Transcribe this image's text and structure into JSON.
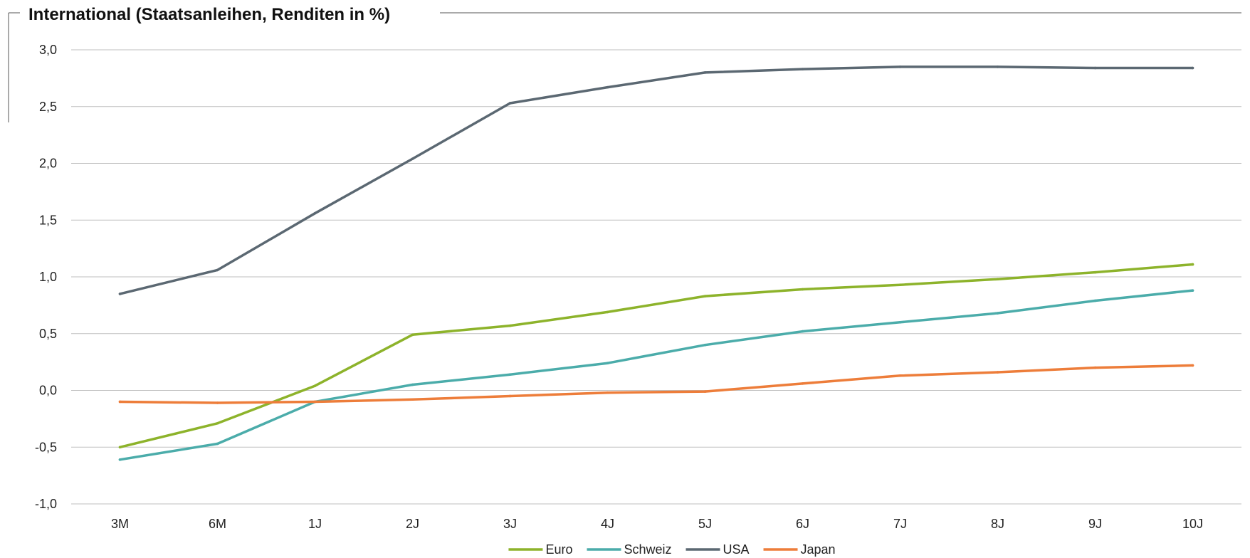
{
  "chart_data": {
    "type": "line",
    "title": "International (Staatsanleihen, Renditen in %)",
    "xlabel": "",
    "ylabel": "",
    "categories": [
      "3M",
      "6M",
      "1J",
      "2J",
      "3J",
      "4J",
      "5J",
      "6J",
      "7J",
      "8J",
      "9J",
      "10J"
    ],
    "ylim": [
      -1.0,
      3.0
    ],
    "yticks": [
      "3,0",
      "2,5",
      "2,0",
      "1,5",
      "1,0",
      "0,5",
      "0,0",
      "-0,5",
      "-1,0"
    ],
    "ytick_values": [
      3.0,
      2.5,
      2.0,
      1.5,
      1.0,
      0.5,
      0.0,
      -0.5,
      -1.0
    ],
    "grid": "horizontal",
    "legend_position": "bottom",
    "series": [
      {
        "name": "Euro",
        "color": "#8DB32B",
        "values": [
          -0.5,
          -0.29,
          0.04,
          0.49,
          0.57,
          0.69,
          0.83,
          0.89,
          0.93,
          0.98,
          1.04,
          1.11
        ]
      },
      {
        "name": "Schweiz",
        "color": "#4BACAA",
        "values": [
          -0.61,
          -0.47,
          -0.1,
          0.05,
          0.14,
          0.24,
          0.4,
          0.52,
          0.6,
          0.68,
          0.79,
          0.88
        ]
      },
      {
        "name": "USA",
        "color": "#5B6872",
        "values": [
          0.85,
          1.06,
          1.56,
          2.04,
          2.53,
          2.67,
          2.8,
          2.83,
          2.85,
          2.85,
          2.84,
          2.84
        ]
      },
      {
        "name": "Japan",
        "color": "#ED7D3A",
        "values": [
          -0.1,
          -0.11,
          -0.1,
          -0.08,
          -0.05,
          -0.02,
          -0.01,
          0.06,
          0.13,
          0.16,
          0.2,
          0.22
        ]
      }
    ]
  }
}
